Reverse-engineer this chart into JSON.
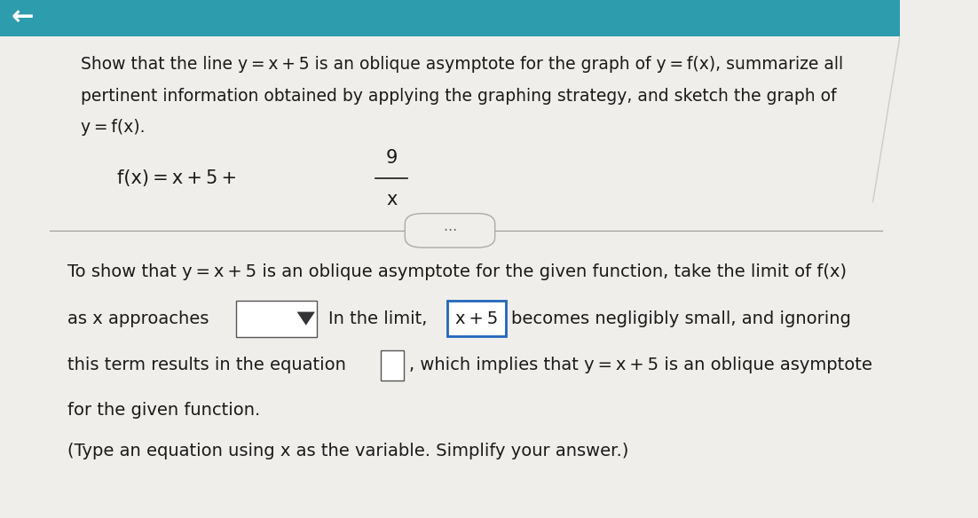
{
  "bg_top_color": "#2d9cad",
  "bg_main_color": "#f0eeeb",
  "left_arrow_symbol": "←",
  "title_text_line1": "Show that the line y = x + 5 is an oblique asymptote for the graph of y = f(x), summarize all",
  "title_text_line2": "pertinent information obtained by applying the graphing strategy, and sketch the graph of",
  "title_text_line3": "y = f(x).",
  "formula_fx": "f(x) = x + 5 + ",
  "formula_numerator": "9",
  "formula_denominator": "x",
  "divider_text": "⋯",
  "body_line1": "To show that y = x + 5 is an oblique asymptote for the given function, take the limit of f(x)",
  "body_line2_part1": "as x approaches",
  "body_line2_part2": "In the limit,",
  "body_line2_highlight": "x + 5",
  "body_line2_part3": "becomes negligibly small, and ignoring",
  "body_line3_part1": "this term results in the equation",
  "body_line3_part2": ", which implies that y = x + 5 is an oblique asymptote",
  "body_line4": "for the given function.",
  "body_line5": "(Type an equation using x as the variable. Simplify your answer.)",
  "text_color": "#1a1a1a",
  "font_size_title": 13.5,
  "font_size_body": 14,
  "font_size_formula": 15
}
